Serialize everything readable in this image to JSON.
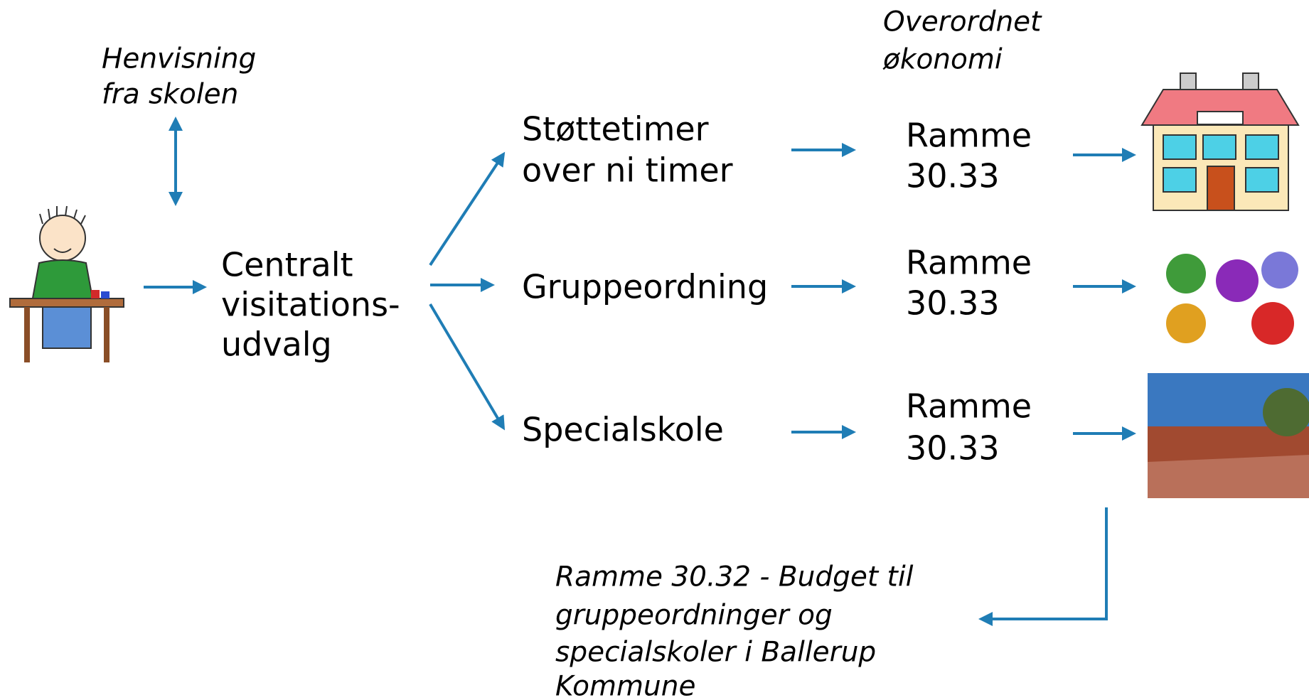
{
  "referral": [
    "Henvisning",
    "fra skolen"
  ],
  "overall_economy": [
    "Overordnet",
    "økonomi"
  ],
  "committee": [
    "Centralt",
    "visitations-",
    "udvalg"
  ],
  "options": [
    {
      "label": [
        "Støttetimer",
        "over ni timer"
      ],
      "frame": [
        "Ramme",
        "30.33"
      ]
    },
    {
      "label": [
        "Gruppeordning"
      ],
      "frame": [
        "Ramme",
        "30.33"
      ]
    },
    {
      "label": [
        "Specialskole"
      ],
      "frame": [
        "Ramme",
        "30.33"
      ]
    }
  ],
  "budget_note": [
    "Ramme 30.32 - Budget til",
    "gruppeordninger og",
    "specialskoler i Ballerup",
    "Kommune"
  ]
}
